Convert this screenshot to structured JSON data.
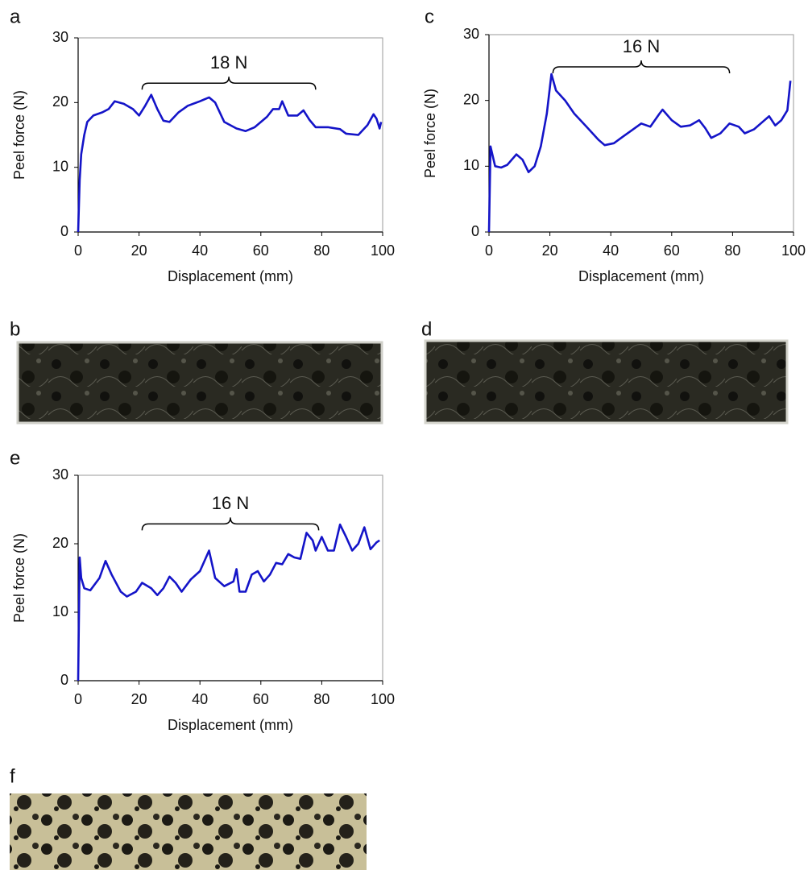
{
  "chart_data": [
    {
      "type": "line",
      "panel": "a",
      "xlabel": "Displacement (mm)",
      "ylabel": "Peel force (N)",
      "xlim": [
        0,
        100
      ],
      "xticks": [
        0,
        20,
        40,
        60,
        80,
        100
      ],
      "ylim": [
        0,
        30
      ],
      "yticks": [
        0,
        10,
        20,
        30
      ],
      "color": "#1414c8",
      "x": [
        0,
        0.5,
        1,
        2,
        3,
        5,
        8,
        10,
        12,
        15,
        18,
        20,
        22,
        24,
        26,
        28,
        30,
        33,
        36,
        40,
        43,
        45,
        48,
        52,
        55,
        58,
        62,
        64,
        66,
        67,
        69,
        72,
        74,
        76,
        78,
        82,
        86,
        88,
        92,
        95,
        97,
        98,
        99,
        99.5
      ],
      "values": [
        0,
        8,
        12,
        15,
        17,
        18,
        18.5,
        19,
        20.2,
        19.8,
        19,
        18,
        19.5,
        21.2,
        19,
        17.2,
        17,
        18.5,
        19.5,
        20.2,
        20.8,
        20,
        17,
        16,
        15.6,
        16.2,
        17.8,
        19,
        19,
        20.2,
        18,
        18,
        18.8,
        17.3,
        16.2,
        16.2,
        15.9,
        15.2,
        15,
        16.5,
        18.2,
        17.5,
        16,
        17
      ],
      "annotations": [
        {
          "text": "18 N",
          "x": [
            21,
            78
          ],
          "y": 23
        }
      ]
    },
    {
      "type": "line",
      "panel": "c",
      "xlabel": "Displacement (mm)",
      "ylabel": "Peel force (N)",
      "xlim": [
        0,
        100
      ],
      "xticks": [
        0,
        20,
        40,
        60,
        80,
        100
      ],
      "ylim": [
        0,
        30
      ],
      "yticks": [
        0,
        10,
        20,
        30
      ],
      "color": "#1414c8",
      "x": [
        0,
        0.5,
        1,
        2,
        4,
        6,
        9,
        11,
        13,
        15,
        17,
        19,
        20.5,
        22,
        25,
        28,
        32,
        36,
        38,
        41,
        44,
        47,
        50,
        53,
        56,
        57,
        60,
        63,
        66,
        69,
        71,
        73,
        76,
        79,
        82,
        84,
        87,
        90,
        92,
        94,
        96,
        98,
        99
      ],
      "values": [
        0,
        13,
        12,
        10,
        9.8,
        10.2,
        11.8,
        11,
        9.1,
        10,
        13,
        18,
        24,
        21.5,
        20,
        18,
        16,
        14,
        13.2,
        13.5,
        14.5,
        15.5,
        16.5,
        16,
        18,
        18.6,
        17,
        16,
        16.2,
        17,
        15.8,
        14.3,
        15,
        16.5,
        16,
        15,
        15.6,
        16.8,
        17.6,
        16.2,
        17,
        18.5,
        23
      ],
      "annotations": [
        {
          "text": "16 N",
          "x": [
            21,
            79
          ],
          "y": 25.1
        }
      ]
    },
    {
      "type": "line",
      "panel": "e",
      "xlabel": "Displacement (mm)",
      "ylabel": "Peel force (N)",
      "xlim": [
        0,
        100
      ],
      "xticks": [
        0,
        20,
        40,
        60,
        80,
        100
      ],
      "ylim": [
        0,
        30
      ],
      "yticks": [
        0,
        10,
        20,
        30
      ],
      "color": "#1414c8",
      "x": [
        0,
        0.5,
        1,
        2,
        4,
        7,
        9,
        11,
        14,
        16,
        19,
        21,
        24,
        26,
        28,
        30,
        32,
        34,
        37,
        40,
        43,
        45,
        48,
        51,
        52,
        53,
        55,
        57,
        59,
        61,
        63,
        65,
        67,
        69,
        71,
        73,
        75,
        77,
        78,
        80,
        82,
        84,
        86,
        88,
        90,
        92,
        94,
        96,
        98,
        99
      ],
      "values": [
        0,
        18,
        15,
        13.5,
        13.2,
        15,
        17.5,
        15.5,
        13,
        12.3,
        13,
        14.3,
        13.5,
        12.5,
        13.5,
        15.2,
        14.3,
        13,
        14.8,
        16,
        19,
        15,
        13.8,
        14.5,
        16.3,
        13,
        13,
        15.5,
        16,
        14.5,
        15.5,
        17.2,
        17,
        18.5,
        18,
        17.8,
        21.6,
        20.5,
        19,
        21,
        19,
        19,
        22.8,
        21,
        19,
        20,
        22.4,
        19.2,
        20.2,
        20.5
      ],
      "annotations": [
        {
          "text": "16 N",
          "x": [
            21,
            79
          ],
          "y": 22.9
        }
      ]
    }
  ],
  "photos": [
    {
      "panel": "b"
    },
    {
      "panel": "d"
    },
    {
      "panel": "f"
    }
  ]
}
